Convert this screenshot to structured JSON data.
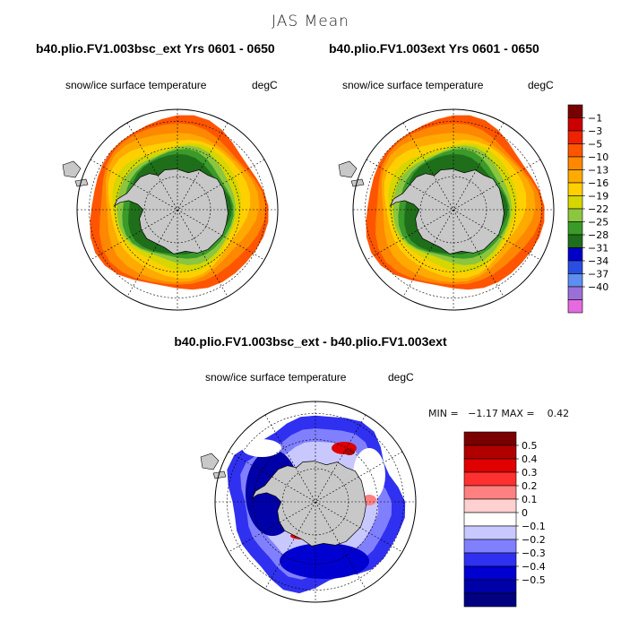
{
  "main_title": "JAS Mean",
  "panels": [
    {
      "case": "b40.plio.FV1.003bsc_ext  Yrs 0601 - 0650",
      "variable": "snow/ice surface temperature",
      "units": "degC"
    },
    {
      "case": "b40.plio.FV1.003ext  Yrs 0601 - 0650",
      "variable": "snow/ice surface temperature",
      "units": "degC"
    }
  ],
  "difference_panel": {
    "title": "b40.plio.FV1.003bsc_ext - b40.plio.FV1.003ext",
    "variable": "snow/ice surface temperature",
    "units": "degC",
    "minmax_text": "MIN =   −1.17 MAX =    0.42"
  },
  "chart_data": [
    {
      "type": "heatmap",
      "title": "b40.plio.FV1.003bsc_ext  Yrs 0601 - 0650",
      "projection": "south-polar-stereographic",
      "colorbar_labels": [
        "−1",
        "−3",
        "−5",
        "−10",
        "−13",
        "−16",
        "−19",
        "−22",
        "−25",
        "−28",
        "−31",
        "−34",
        "−37",
        "−40"
      ],
      "colorbar_colors": [
        "#7a0000",
        "#cc0000",
        "#ee2200",
        "#ff5500",
        "#ff8800",
        "#ffaa00",
        "#ffd000",
        "#d6d600",
        "#8cc63f",
        "#3a9a2a",
        "#1f6e1a",
        "#0000c8",
        "#2a4ee0",
        "#5d8ef0",
        "#9a70d8",
        "#e56ae0"
      ],
      "contour_levels": [
        -1,
        -3,
        -5,
        -10,
        -13,
        -16,
        -19,
        -22,
        -25,
        -28,
        -31,
        -34,
        -37,
        -40
      ]
    },
    {
      "type": "heatmap",
      "title": "b40.plio.FV1.003ext  Yrs 0601 - 0650",
      "projection": "south-polar-stereographic",
      "contour_levels": [
        -1,
        -3,
        -5,
        -10,
        -13,
        -16,
        -19,
        -22,
        -25,
        -28,
        -31,
        -34,
        -37,
        -40
      ]
    },
    {
      "type": "heatmap",
      "title": "b40.plio.FV1.003bsc_ext - b40.plio.FV1.003ext",
      "projection": "south-polar-stereographic",
      "min": -1.17,
      "max": 0.42,
      "colorbar_labels": [
        "0.5",
        "0.4",
        "0.3",
        "0.2",
        "0.1",
        "0",
        "−0.1",
        "−0.2",
        "−0.3",
        "−0.4",
        "−0.5"
      ],
      "colorbar_colors": [
        "#7a0000",
        "#b00000",
        "#e00000",
        "#ff3030",
        "#ff8080",
        "#ffd0d0",
        "#ffffff",
        "#c8c8ff",
        "#8080ff",
        "#3030f0",
        "#0000d0",
        "#0000a8",
        "#000080"
      ],
      "contour_levels": [
        0.5,
        0.4,
        0.3,
        0.2,
        0.1,
        0,
        -0.1,
        -0.2,
        -0.3,
        -0.4,
        -0.5
      ]
    }
  ]
}
